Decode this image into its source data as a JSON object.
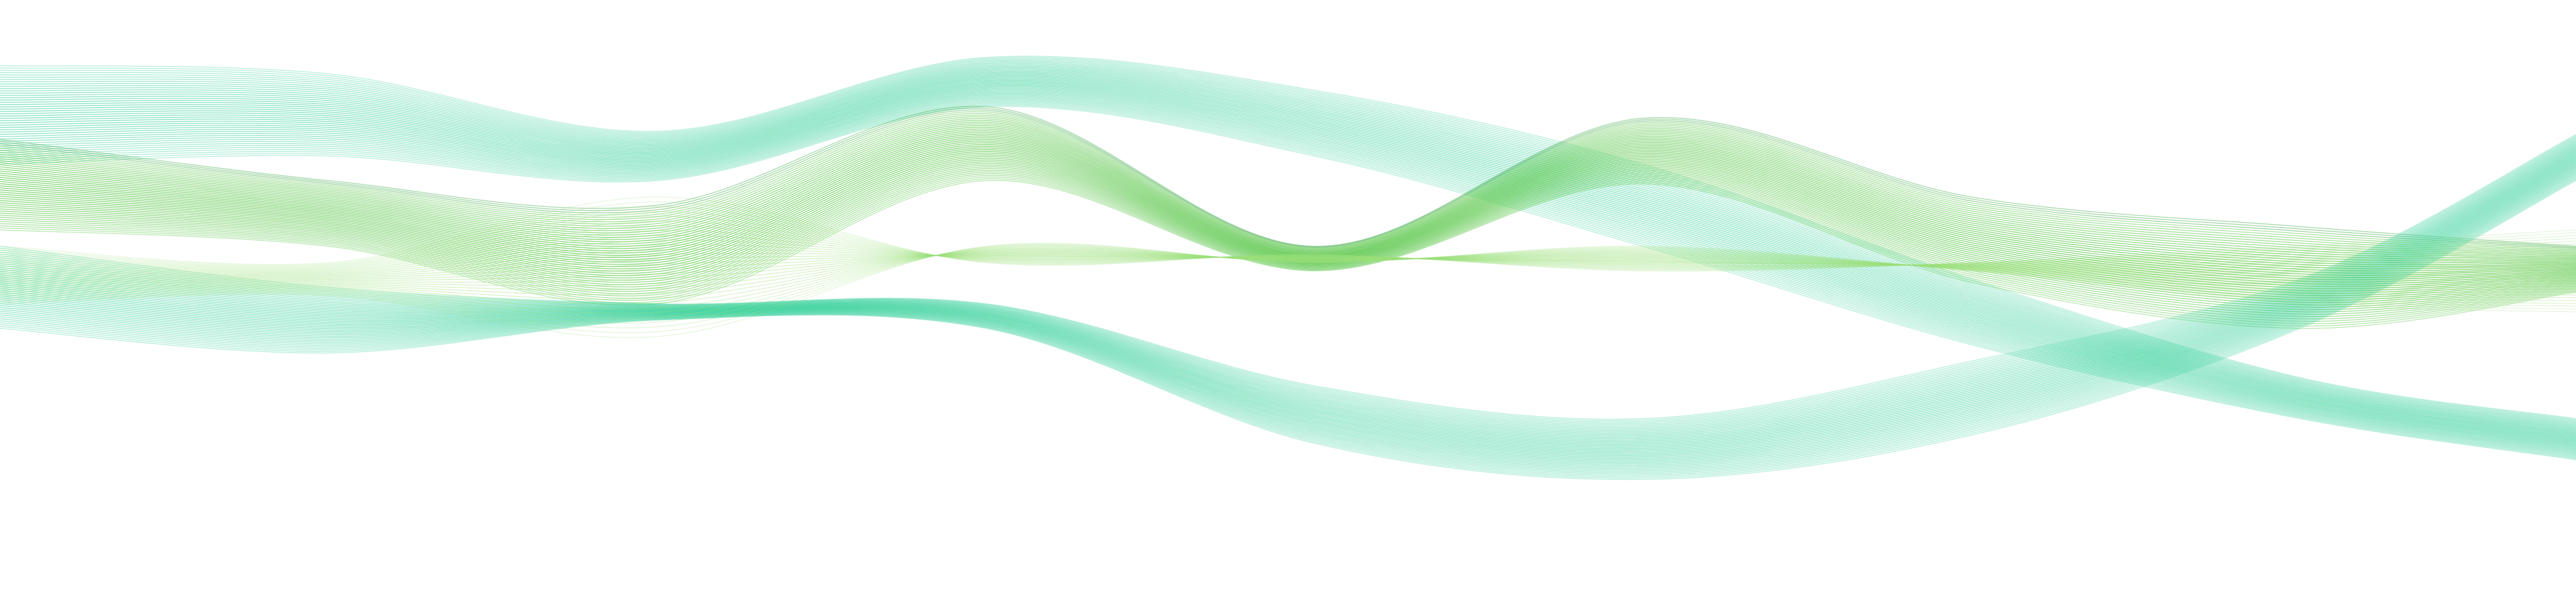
{
  "background": "#ffffff",
  "colors": {
    "teal": "#35d09a",
    "light_teal": "#7fe0bd",
    "green": "#4cc23a",
    "dark_green": "#1e9a2a",
    "light_green": "#9be07a"
  },
  "bundles": [
    {
      "name": "teal-upper-wave",
      "color_key": "teal"
    },
    {
      "name": "green-middle-wave",
      "color_key": "green"
    },
    {
      "name": "teal-lower-wave",
      "color_key": "teal"
    },
    {
      "name": "light-green-wave",
      "color_key": "light_green"
    }
  ]
}
